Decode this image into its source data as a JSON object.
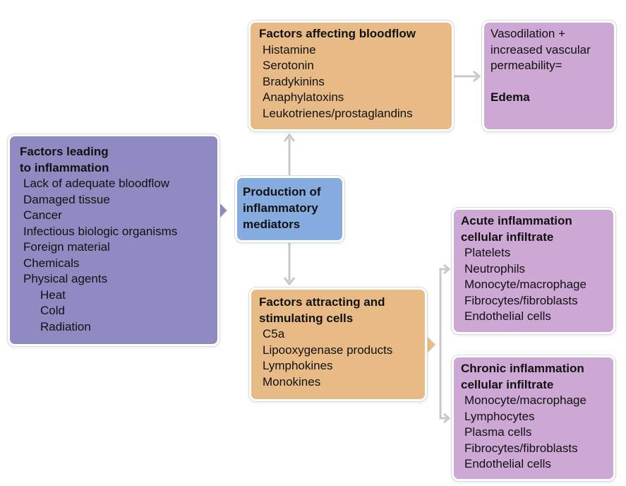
{
  "causes": {
    "title_line1": "Factors leading",
    "title_line2": "to inflammation",
    "items": [
      "Lack of adequate bloodflow",
      "Damaged tissue",
      "Cancer",
      "Infectious biologic organisms",
      "Foreign material",
      "Chemicals",
      "Physical agents"
    ],
    "subitems": [
      "Heat",
      "Cold",
      "Radiation"
    ]
  },
  "central": {
    "line1": "Production of",
    "line2": "inflammatory",
    "line3": "mediators"
  },
  "bloodflow": {
    "title": "Factors affecting bloodflow",
    "items": [
      "Histamine",
      "Serotonin",
      "Bradykinins",
      "Anaphylatoxins",
      "Leukotrienes/prostaglandins"
    ]
  },
  "edema": {
    "line1": "Vasodilation +",
    "line2": "increased vascular",
    "line3": "permeability=",
    "result": "Edema"
  },
  "cells": {
    "title_line1": "Factors attracting and",
    "title_line2": "stimulating cells",
    "items": [
      "C5a",
      "Lipooxygenase products",
      "Lymphokines",
      "Monokines"
    ]
  },
  "acute": {
    "title_line1": "Acute inflammation",
    "title_line2": "cellular infiltrate",
    "items": [
      "Platelets",
      "Neutrophils",
      "Monocyte/macrophage",
      "Fibrocytes/fibroblasts",
      "Endothelial cells"
    ]
  },
  "chronic": {
    "title_line1": "Chronic inflammation",
    "title_line2": "cellular infiltrate",
    "items": [
      "Monocyte/macrophage",
      "Lymphocytes",
      "Plasma cells",
      "Fibrocytes/fibroblasts",
      "Endothelial cells"
    ]
  },
  "colors": {
    "causes_fill": "#8f8ac2",
    "mediators_fill": "#86abdf",
    "factors_fill": "#e8bb86",
    "outcome_fill": "#cda8d4",
    "connector": "#c8c8c8"
  }
}
